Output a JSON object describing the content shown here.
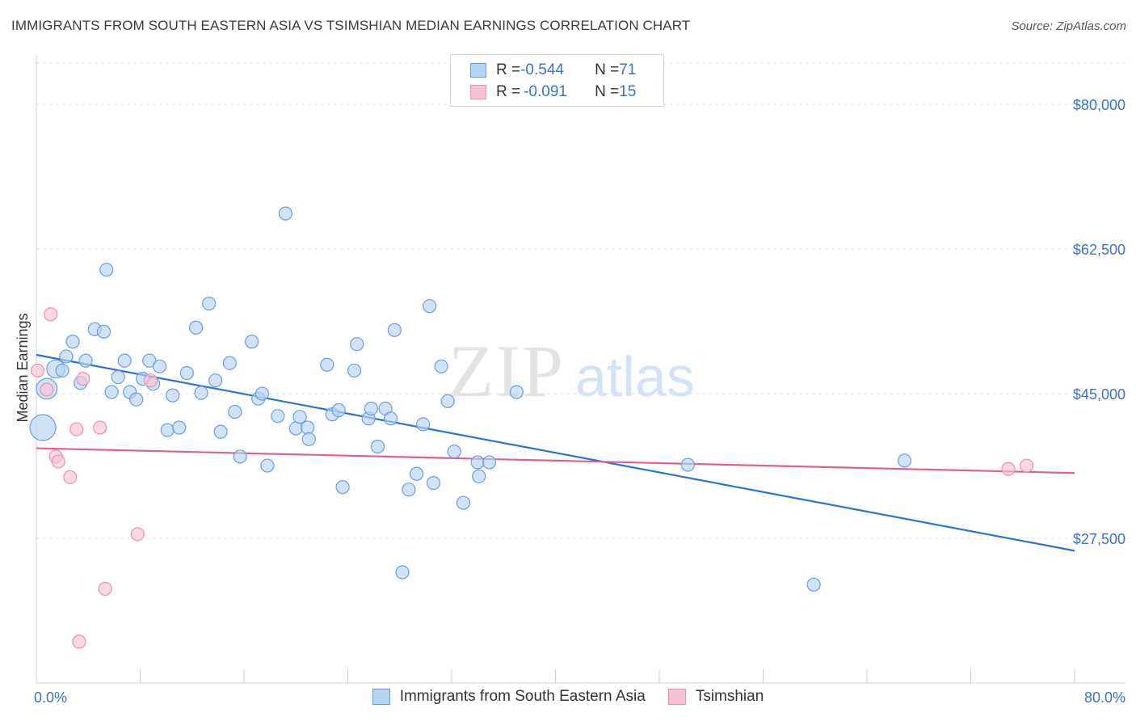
{
  "title": "IMMIGRANTS FROM SOUTH EASTERN ASIA VS TSIMSHIAN MEDIAN EARNINGS CORRELATION CHART",
  "source": "Source: ZipAtlas.com",
  "watermark": {
    "zip": "ZIP",
    "atlas": "atlas"
  },
  "legend": {
    "r_label": "R = ",
    "n_label": "N = ",
    "rows": [
      {
        "r": "-0.544",
        "n": "71"
      },
      {
        "r": "-0.091",
        "n": "15"
      }
    ]
  },
  "colors": {
    "blue_fill": "#b8d2f3",
    "blue_stroke": "#6a9ee0",
    "blue_line": "#2a72d4",
    "pink_fill": "#f7c3d3",
    "pink_stroke": "#ec8fac",
    "pink_line": "#e0608c",
    "tick_text": "#3b73c4"
  },
  "chart_data": {
    "type": "scatter",
    "title": "IMMIGRANTS FROM SOUTH EASTERN ASIA VS TSIMSHIAN MEDIAN EARNINGS CORRELATION CHART",
    "xlabel": "",
    "ylabel": "Median Earnings",
    "xlim": [
      0,
      80
    ],
    "ylim": [
      10000,
      85000
    ],
    "x_tick_labels": [
      "0.0%",
      "80.0%"
    ],
    "y_ticks": [
      27500,
      45000,
      62500,
      80000
    ],
    "y_tick_labels": [
      "$27,500",
      "$45,000",
      "$62,500",
      "$80,000"
    ],
    "grid": true,
    "legend_position": "top-center",
    "series": [
      {
        "name": "Immigrants from South Eastern Asia",
        "color": "#6a9ee0",
        "trend": {
          "x": [
            0,
            80
          ],
          "y": [
            49700,
            26000
          ]
        },
        "points": [
          {
            "x": 0.5,
            "y": 40900,
            "s": 2
          },
          {
            "x": 0.8,
            "y": 45600,
            "s": 1.6
          },
          {
            "x": 1.5,
            "y": 48000,
            "s": 1.4
          },
          {
            "x": 2.0,
            "y": 47800,
            "s": 1
          },
          {
            "x": 2.3,
            "y": 49500,
            "s": 1
          },
          {
            "x": 2.8,
            "y": 51300,
            "s": 1
          },
          {
            "x": 3.4,
            "y": 46300,
            "s": 1
          },
          {
            "x": 3.8,
            "y": 49000,
            "s": 1
          },
          {
            "x": 4.5,
            "y": 52800,
            "s": 1
          },
          {
            "x": 5.2,
            "y": 52500,
            "s": 1
          },
          {
            "x": 5.4,
            "y": 60000,
            "s": 1
          },
          {
            "x": 5.8,
            "y": 45200,
            "s": 1
          },
          {
            "x": 6.3,
            "y": 47000,
            "s": 1
          },
          {
            "x": 6.8,
            "y": 49000,
            "s": 1
          },
          {
            "x": 7.2,
            "y": 45200,
            "s": 1
          },
          {
            "x": 7.7,
            "y": 44300,
            "s": 1
          },
          {
            "x": 8.2,
            "y": 46800,
            "s": 1
          },
          {
            "x": 8.7,
            "y": 49000,
            "s": 1
          },
          {
            "x": 9.0,
            "y": 46200,
            "s": 1
          },
          {
            "x": 9.5,
            "y": 48300,
            "s": 1
          },
          {
            "x": 10.1,
            "y": 40600,
            "s": 1
          },
          {
            "x": 10.5,
            "y": 44800,
            "s": 1
          },
          {
            "x": 11.0,
            "y": 40900,
            "s": 1
          },
          {
            "x": 11.6,
            "y": 47500,
            "s": 1
          },
          {
            "x": 12.3,
            "y": 53000,
            "s": 1
          },
          {
            "x": 12.7,
            "y": 45100,
            "s": 1
          },
          {
            "x": 13.3,
            "y": 55900,
            "s": 1
          },
          {
            "x": 13.8,
            "y": 46600,
            "s": 1
          },
          {
            "x": 14.2,
            "y": 40400,
            "s": 1
          },
          {
            "x": 14.9,
            "y": 48700,
            "s": 1
          },
          {
            "x": 15.3,
            "y": 42800,
            "s": 1
          },
          {
            "x": 15.7,
            "y": 37400,
            "s": 1
          },
          {
            "x": 16.6,
            "y": 51300,
            "s": 1
          },
          {
            "x": 17.1,
            "y": 44400,
            "s": 1
          },
          {
            "x": 17.4,
            "y": 45000,
            "s": 1
          },
          {
            "x": 17.8,
            "y": 36300,
            "s": 1
          },
          {
            "x": 18.6,
            "y": 42300,
            "s": 1
          },
          {
            "x": 19.2,
            "y": 66800,
            "s": 1
          },
          {
            "x": 20.0,
            "y": 40800,
            "s": 1
          },
          {
            "x": 20.3,
            "y": 42200,
            "s": 1
          },
          {
            "x": 20.9,
            "y": 40900,
            "s": 1
          },
          {
            "x": 21.0,
            "y": 39500,
            "s": 1
          },
          {
            "x": 22.4,
            "y": 48500,
            "s": 1
          },
          {
            "x": 22.8,
            "y": 42500,
            "s": 1
          },
          {
            "x": 23.3,
            "y": 43000,
            "s": 1
          },
          {
            "x": 23.6,
            "y": 33700,
            "s": 1
          },
          {
            "x": 24.5,
            "y": 47800,
            "s": 1
          },
          {
            "x": 24.7,
            "y": 51000,
            "s": 1
          },
          {
            "x": 25.6,
            "y": 42000,
            "s": 1
          },
          {
            "x": 25.8,
            "y": 43200,
            "s": 1
          },
          {
            "x": 26.3,
            "y": 38600,
            "s": 1
          },
          {
            "x": 26.9,
            "y": 43200,
            "s": 1
          },
          {
            "x": 27.3,
            "y": 42000,
            "s": 1
          },
          {
            "x": 27.6,
            "y": 52700,
            "s": 1
          },
          {
            "x": 28.2,
            "y": 23400,
            "s": 1
          },
          {
            "x": 28.7,
            "y": 33400,
            "s": 1
          },
          {
            "x": 29.3,
            "y": 35300,
            "s": 1
          },
          {
            "x": 29.8,
            "y": 41300,
            "s": 1
          },
          {
            "x": 30.3,
            "y": 55600,
            "s": 1
          },
          {
            "x": 30.6,
            "y": 34200,
            "s": 1
          },
          {
            "x": 31.2,
            "y": 48300,
            "s": 1
          },
          {
            "x": 31.7,
            "y": 44100,
            "s": 1
          },
          {
            "x": 32.2,
            "y": 38000,
            "s": 1
          },
          {
            "x": 32.9,
            "y": 31800,
            "s": 1
          },
          {
            "x": 34.0,
            "y": 36700,
            "s": 1
          },
          {
            "x": 34.1,
            "y": 35000,
            "s": 1
          },
          {
            "x": 34.9,
            "y": 36700,
            "s": 1
          },
          {
            "x": 37.0,
            "y": 45200,
            "s": 1
          },
          {
            "x": 50.2,
            "y": 36400,
            "s": 1
          },
          {
            "x": 59.9,
            "y": 21900,
            "s": 1
          },
          {
            "x": 66.9,
            "y": 36900,
            "s": 1
          }
        ]
      },
      {
        "name": "Tsimshian",
        "color": "#ec8fac",
        "trend": {
          "x": [
            0,
            80
          ],
          "y": [
            38400,
            35400
          ]
        },
        "points": [
          {
            "x": 0.1,
            "y": 47800,
            "s": 1
          },
          {
            "x": 0.8,
            "y": 45500,
            "s": 1
          },
          {
            "x": 1.1,
            "y": 54600,
            "s": 1
          },
          {
            "x": 1.5,
            "y": 37400,
            "s": 1
          },
          {
            "x": 1.7,
            "y": 36800,
            "s": 1
          },
          {
            "x": 2.6,
            "y": 34900,
            "s": 1
          },
          {
            "x": 3.1,
            "y": 40700,
            "s": 1
          },
          {
            "x": 3.3,
            "y": 15000,
            "s": 1
          },
          {
            "x": 3.6,
            "y": 46800,
            "s": 1
          },
          {
            "x": 4.9,
            "y": 40900,
            "s": 1
          },
          {
            "x": 5.3,
            "y": 21400,
            "s": 1
          },
          {
            "x": 7.8,
            "y": 28000,
            "s": 1
          },
          {
            "x": 8.8,
            "y": 46600,
            "s": 1
          },
          {
            "x": 74.9,
            "y": 35900,
            "s": 1
          },
          {
            "x": 76.3,
            "y": 36300,
            "s": 1
          }
        ]
      }
    ]
  }
}
